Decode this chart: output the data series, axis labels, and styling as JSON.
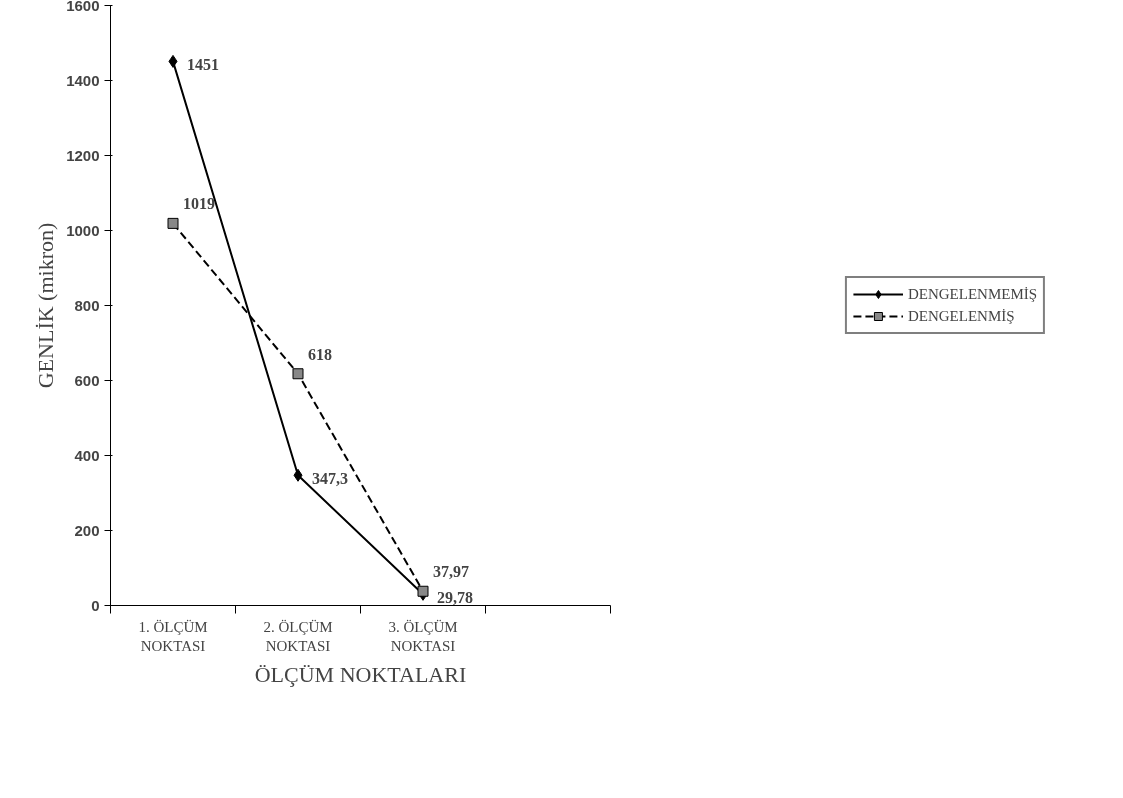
{
  "chart_data": {
    "type": "line",
    "xlabel": "ÖLÇÜM NOKTALARI",
    "ylabel": "GENLİK (mikron)",
    "categories": [
      "1. ÖLÇÜM NOKTASI",
      "2. ÖLÇÜM NOKTASI",
      "3. ÖLÇÜM NOKTASI",
      null
    ],
    "series": [
      {
        "name": "DENGELENMEMİŞ",
        "color": "#000000",
        "marker": "diamond",
        "line_style": "solid",
        "values": [
          1451,
          347.3,
          29.78,
          null
        ],
        "value_labels": [
          "1451",
          "347,3",
          "29,78",
          null
        ]
      },
      {
        "name": "DENGELENMİŞ",
        "color": "#000000",
        "marker": "square",
        "line_style": "dashed",
        "values": [
          1019,
          618,
          37.97,
          null
        ],
        "value_labels": [
          "1019",
          "618",
          "37,97",
          null
        ]
      }
    ],
    "ylim": [
      0,
      1600
    ],
    "yticks": [
      0,
      200,
      400,
      600,
      800,
      1000,
      1200,
      1400,
      1600
    ],
    "grid": false,
    "legend": "right"
  }
}
